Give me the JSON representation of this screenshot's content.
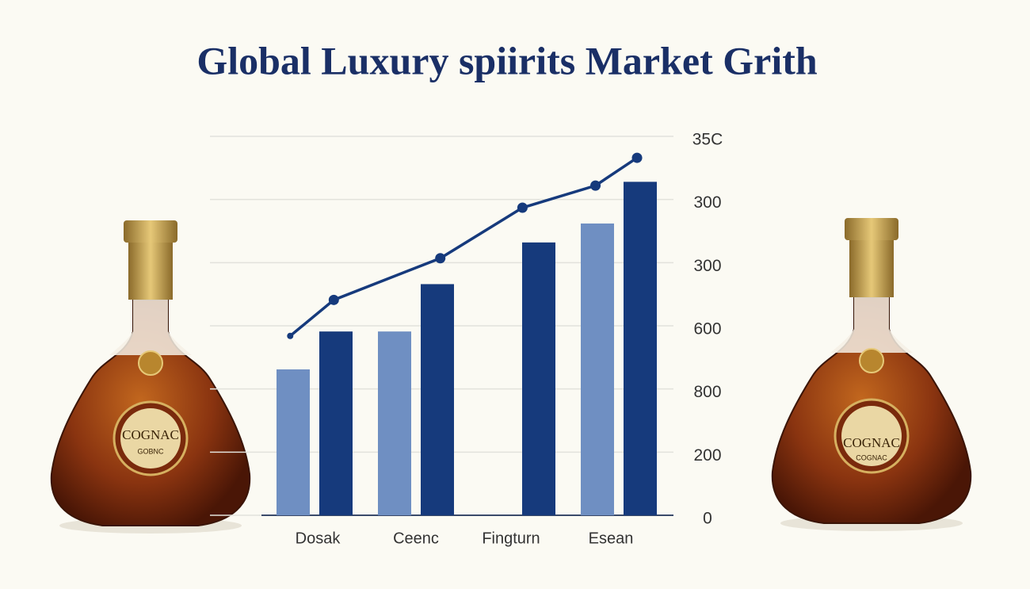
{
  "chart_data": {
    "type": "bar",
    "title": "Global Luxury spiirits Market Grith",
    "categories": [
      "Dosak",
      "Ceenc",
      "Fingturn",
      "Esean"
    ],
    "series": [
      {
        "color": "#6f8fc2",
        "values": [
          2.31,
          2.91,
          null,
          4.62
        ]
      },
      {
        "color": "#163a7c",
        "values": [
          2.91,
          3.66,
          4.32,
          5.28
        ]
      },
      {
        "type": "line",
        "color": "#163a7c",
        "x": [
          -0.24,
          0.19,
          1.24,
          2.05,
          2.77,
          3.18
        ],
        "values": [
          2.84,
          3.41,
          4.07,
          4.87,
          5.22,
          5.66
        ]
      }
    ],
    "ylim": [
      0,
      6
    ],
    "yticks": [
      0,
      {
        "value": 1,
        "label": "200"
      },
      {
        "value": 2,
        "label": "800"
      },
      {
        "value": 3,
        "label": "600"
      },
      {
        "value": 4,
        "label": "300"
      },
      {
        "value": 5,
        "label": "300"
      },
      {
        "value": 6,
        "label": "35C"
      }
    ],
    "grid": true,
    "bottles": [
      {
        "label": "COGNAC",
        "sub": "GOBNC"
      },
      {
        "label": "COGNAC",
        "sub": "COGNAC"
      }
    ]
  }
}
